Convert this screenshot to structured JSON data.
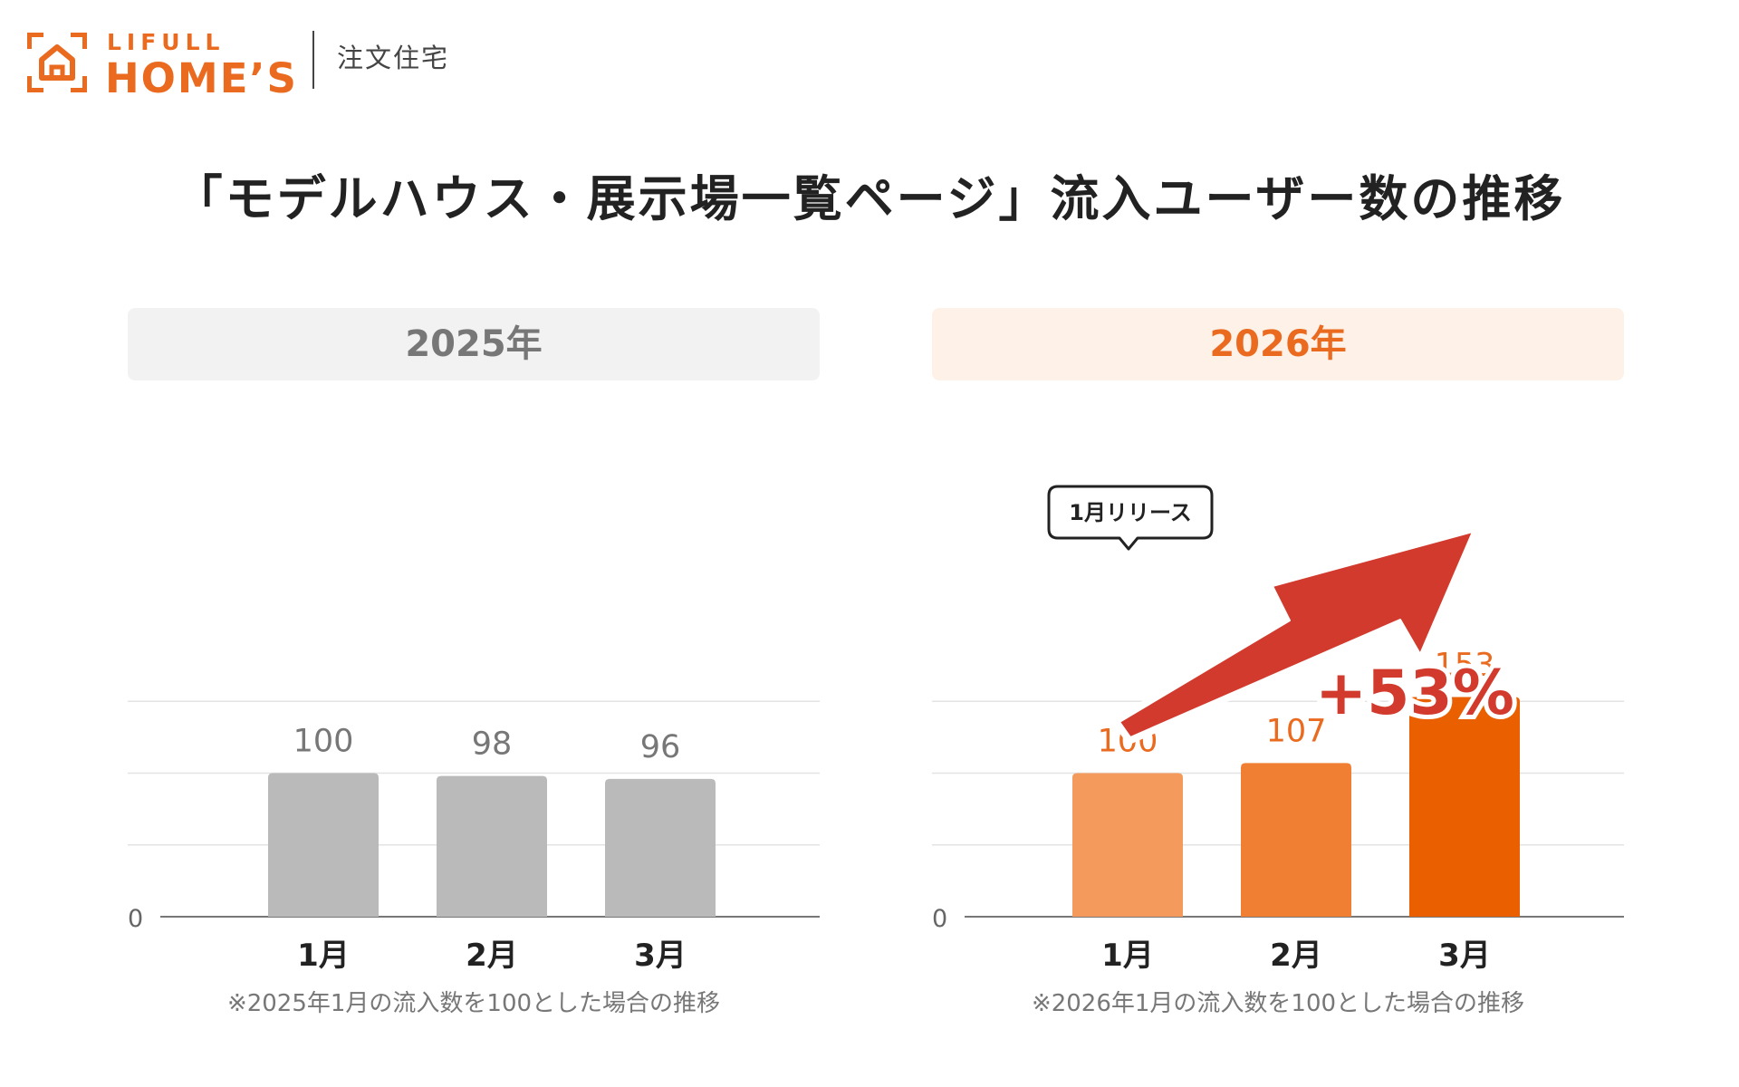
{
  "header": {
    "brand_top": "LIFULL",
    "brand_bottom": "HOME’S",
    "category": "注文住宅",
    "brand_color": "#ea6a1f"
  },
  "title": "「モデルハウス・展示場一覧ページ」流入ユーザー数の推移",
  "chart_data": [
    {
      "type": "bar",
      "title": "2025年",
      "categories": [
        "1月",
        "2月",
        "3月"
      ],
      "values": [
        100,
        98,
        96
      ],
      "ylim": [
        0,
        200
      ],
      "y_ticks": [
        0
      ],
      "grid": true,
      "footnote": "※2025年1月の流入数を100とした場合の推移",
      "colors": {
        "bars": [
          "#bababa",
          "#bababa",
          "#bababa"
        ],
        "label": "#777777",
        "header_bg": "#f2f2f2",
        "header_text": "#777777"
      }
    },
    {
      "type": "bar",
      "title": "2026年",
      "categories": [
        "1月",
        "2月",
        "3月"
      ],
      "values": [
        100,
        107,
        153
      ],
      "ylim": [
        0,
        200
      ],
      "y_ticks": [
        0
      ],
      "grid": true,
      "annotations": {
        "callout": "1月リリース",
        "growth": "+53%"
      },
      "footnote": "※2026年1月の流入数を100とした場合の推移",
      "colors": {
        "bars": [
          "#f39a5c",
          "#f07f34",
          "#ea6000"
        ],
        "label": "#ea6a1f",
        "header_bg": "#fdf1e8",
        "header_text": "#ea6a1f",
        "arrow": "#d13a2c"
      }
    }
  ]
}
